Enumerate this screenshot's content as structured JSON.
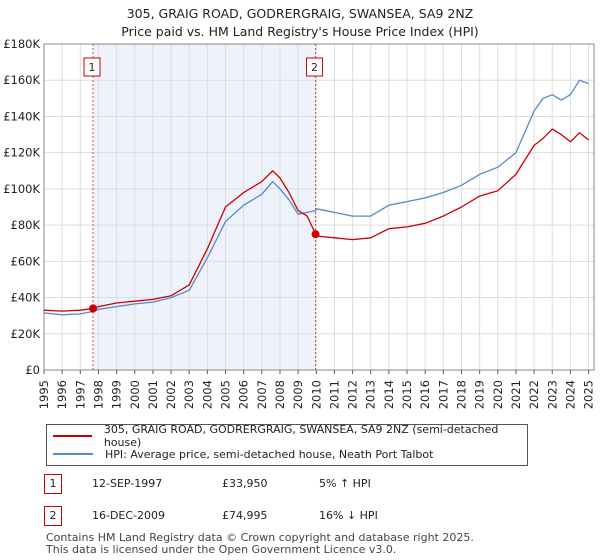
{
  "chart_data": {
    "type": "line",
    "title": "305, GRAIG ROAD, GODRERGRAIG, SWANSEA, SA9 2NZ",
    "subtitle": "Price paid vs. HM Land Registry's House Price Index (HPI)",
    "xlabel": "",
    "ylabel": "",
    "xlim": [
      1995,
      2025.3
    ],
    "ylim": [
      0,
      180000
    ],
    "x_ticks": [
      "1995",
      "1996",
      "1997",
      "1998",
      "1999",
      "2000",
      "2001",
      "2002",
      "2003",
      "2004",
      "2005",
      "2006",
      "2007",
      "2008",
      "2009",
      "2010",
      "2011",
      "2012",
      "2013",
      "2014",
      "2015",
      "2016",
      "2017",
      "2018",
      "2019",
      "2020",
      "2021",
      "2022",
      "2023",
      "2024",
      "2025"
    ],
    "y_ticks": [
      {
        "value": 0,
        "label": "£0"
      },
      {
        "value": 20000,
        "label": "£20K"
      },
      {
        "value": 40000,
        "label": "£40K"
      },
      {
        "value": 60000,
        "label": "£60K"
      },
      {
        "value": 80000,
        "label": "£80K"
      },
      {
        "value": 100000,
        "label": "£100K"
      },
      {
        "value": 120000,
        "label": "£120K"
      },
      {
        "value": 140000,
        "label": "£140K"
      },
      {
        "value": 160000,
        "label": "£160K"
      },
      {
        "value": 180000,
        "label": "£180K"
      }
    ],
    "shaded_range": [
      1997.7,
      2009.96
    ],
    "x": [
      1995,
      1996,
      1997,
      1997.7,
      1998,
      1999,
      2000,
      2001,
      2002,
      2003,
      2004,
      2005,
      2006,
      2007,
      2007.6,
      2008,
      2008.5,
      2009,
      2009.5,
      2009.96,
      2010,
      2011,
      2012,
      2013,
      2014,
      2015,
      2016,
      2017,
      2018,
      2019,
      2020,
      2021,
      2022,
      2022.5,
      2023,
      2023.5,
      2024,
      2024.5,
      2025
    ],
    "series": [
      {
        "name": "305, GRAIG ROAD, GODRERGRAIG, SWANSEA, SA9 2NZ (semi-detached house)",
        "color": "#cc0000",
        "values": [
          33000,
          32500,
          33000,
          33950,
          35000,
          37000,
          38000,
          39000,
          41000,
          47000,
          67000,
          90000,
          98000,
          104000,
          110000,
          106000,
          98000,
          88000,
          85000,
          74995,
          74000,
          73000,
          72000,
          73000,
          78000,
          79000,
          81000,
          85000,
          90000,
          96000,
          99000,
          108000,
          124000,
          128000,
          133000,
          130000,
          126000,
          131000,
          127000
        ]
      },
      {
        "name": "HPI: Average price, semi-detached house, Neath Port Talbot",
        "color": "#5588cc",
        "values": [
          31500,
          30500,
          31000,
          32300,
          33500,
          35000,
          36500,
          37500,
          40000,
          44000,
          62000,
          82000,
          91000,
          97000,
          104000,
          100000,
          94000,
          86000,
          87000,
          88000,
          89000,
          87000,
          85000,
          85000,
          91000,
          93000,
          95000,
          98000,
          102000,
          108000,
          112000,
          120000,
          143000,
          150000,
          152000,
          149000,
          152000,
          160000,
          158000
        ]
      }
    ],
    "sales": [
      {
        "label": "1",
        "x": 1997.7,
        "price": 33950
      },
      {
        "label": "2",
        "x": 2009.96,
        "price": 74995
      }
    ]
  },
  "legend": {
    "property_label": "305, GRAIG ROAD, GODRERGRAIG, SWANSEA, SA9 2NZ (semi-detached house)",
    "hpi_label": "HPI: Average price, semi-detached house, Neath Port Talbot"
  },
  "sales_table": [
    {
      "num": "1",
      "date": "12-SEP-1997",
      "price": "£33,950",
      "hpi": "5% ↑ HPI"
    },
    {
      "num": "2",
      "date": "16-DEC-2009",
      "price": "£74,995",
      "hpi": "16% ↓ HPI"
    }
  ],
  "footer": {
    "line1": "Contains HM Land Registry data © Crown copyright and database right 2025.",
    "line2": "This data is licensed under the Open Government Licence v3.0."
  },
  "colors": {
    "property": "#cc0000",
    "hpi": "#5588cc",
    "shade": "#eef2fb",
    "grid": "#dddddd"
  }
}
